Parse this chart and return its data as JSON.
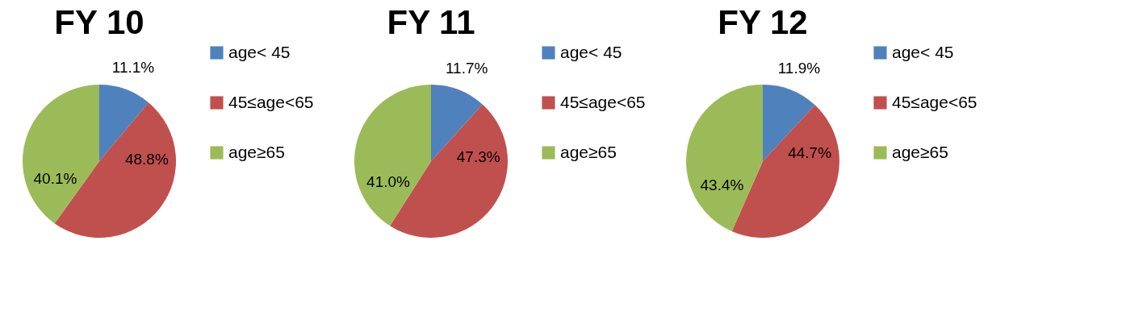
{
  "chart_data": [
    {
      "type": "pie",
      "title": "FY 10",
      "categories": [
        "age< 45",
        "45≤age<65",
        "age≥65"
      ],
      "values": [
        11.1,
        48.8,
        40.1
      ],
      "colors": [
        "#4f81bd",
        "#c0504d",
        "#9bbb59"
      ],
      "value_labels": [
        "11.1%",
        "48.8%",
        "40.1%"
      ],
      "legend": "right"
    },
    {
      "type": "pie",
      "title": "FY 11",
      "categories": [
        "age< 45",
        "45≤age<65",
        "age≥65"
      ],
      "values": [
        11.7,
        47.3,
        41.0
      ],
      "colors": [
        "#4f81bd",
        "#c0504d",
        "#9bbb59"
      ],
      "value_labels": [
        "11.7%",
        "47.3%",
        "41.0%"
      ],
      "legend": "right"
    },
    {
      "type": "pie",
      "title": "FY 12",
      "categories": [
        "age< 45",
        "45≤age<65",
        "age≥65"
      ],
      "values": [
        11.9,
        44.7,
        43.4
      ],
      "colors": [
        "#4f81bd",
        "#c0504d",
        "#9bbb59"
      ],
      "value_labels": [
        "11.9%",
        "44.7%",
        "43.4%"
      ],
      "legend": "right"
    }
  ]
}
